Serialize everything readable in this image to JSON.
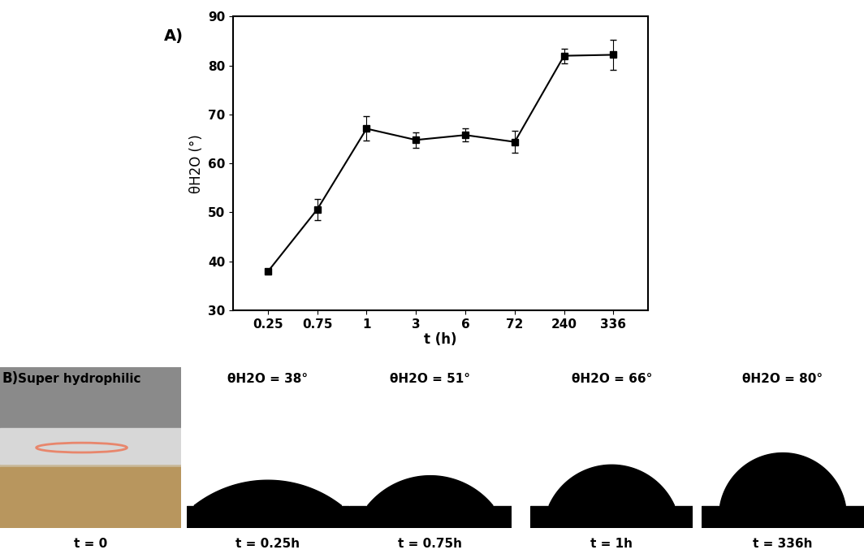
{
  "chart_data": {
    "type": "line",
    "panel_label": "A)",
    "x_label": "t (h)",
    "y_label": "θH2O (°)",
    "categories": [
      "0.25",
      "0.75",
      "1",
      "3",
      "6",
      "72",
      "240",
      "336"
    ],
    "values": [
      37.9,
      50.6,
      67.1,
      64.8,
      65.8,
      64.4,
      82.0,
      82.2
    ],
    "errors": [
      0.5,
      2.2,
      2.5,
      1.6,
      1.3,
      2.2,
      1.5,
      3.0
    ],
    "color": "#000000",
    "marker": "square",
    "line_style": "solid",
    "ylim": [
      30,
      90
    ],
    "yticks": [
      30,
      40,
      50,
      60,
      70,
      80,
      90
    ],
    "grid": false
  },
  "panel_b": {
    "panel_label": "B)",
    "images": [
      {
        "label": "Super hydrophilic",
        "time": "t = 0"
      },
      {
        "label": "θH2O = 38°",
        "angle": 38,
        "time": "t = 0.25h"
      },
      {
        "label": "θH2O = 51°",
        "angle": 51,
        "time": "t = 0.75h"
      },
      {
        "label": "θH2O = 66°",
        "angle": 66,
        "time": "t = 1h"
      },
      {
        "label": "θH2O = 80°",
        "angle": 80,
        "time": "t = 336h"
      }
    ]
  }
}
